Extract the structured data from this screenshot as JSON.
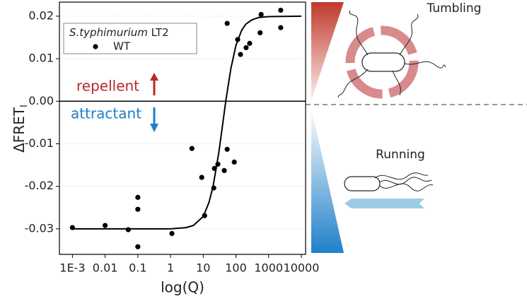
{
  "chart_data": {
    "type": "scatter",
    "x_label": "log(Q)",
    "y_label": "ΔFRET",
    "y_label_sub": "I",
    "legend_title_italic": "S.typhimurium",
    "legend_title_rest": "LT2",
    "xlog": true,
    "xlim": [
      0.0004,
      13500
    ],
    "ylim": [
      -0.036,
      0.0233
    ],
    "xticks": [
      {
        "value": 0.001,
        "label": "1E-3"
      },
      0.01,
      0.1,
      1,
      10,
      100,
      1000,
      10000
    ],
    "yticks": [
      0.02,
      0.01,
      {
        "value": 0,
        "label": "0.00"
      },
      -0.01,
      -0.02,
      -0.03
    ],
    "grid": true,
    "hline": 0,
    "series": [
      {
        "name": "WT",
        "color": "#000000",
        "x": [
          0.001,
          0.01,
          0.051,
          0.1,
          0.1,
          0.1,
          1.1,
          4.5,
          9,
          11,
          21,
          22,
          28,
          44,
          54,
          54,
          89,
          113,
          138,
          205,
          263,
          550,
          590,
          2340,
          2340
        ],
        "values": [
          -0.0297,
          -0.0292,
          -0.0302,
          -0.0226,
          -0.0254,
          -0.0342,
          -0.0311,
          -0.0111,
          -0.0179,
          -0.0269,
          -0.0204,
          -0.0158,
          -0.0148,
          -0.0163,
          -0.0113,
          0.0183,
          -0.0143,
          0.0145,
          0.011,
          0.0126,
          0.0136,
          0.0161,
          0.0204,
          0.0173,
          0.0214
        ]
      }
    ],
    "fit": {
      "color": "#000000",
      "x": [
        0.001,
        0.01,
        0.1,
        1,
        3,
        5,
        10,
        15,
        20,
        30,
        40,
        50,
        70,
        100,
        150,
        200,
        300,
        500,
        1000,
        10000
      ],
      "values": [
        -0.03,
        -0.03,
        -0.03,
        -0.03,
        -0.0297,
        -0.0292,
        -0.0271,
        -0.0238,
        -0.02,
        -0.012,
        -0.005,
        0.0005,
        0.0077,
        0.0131,
        0.0167,
        0.0181,
        0.0191,
        0.0197,
        0.0199,
        0.02
      ]
    },
    "annotations": {
      "repellent": "repellent",
      "attractant": "attractant",
      "tumbling": "Tumbling",
      "running": "Running"
    }
  }
}
